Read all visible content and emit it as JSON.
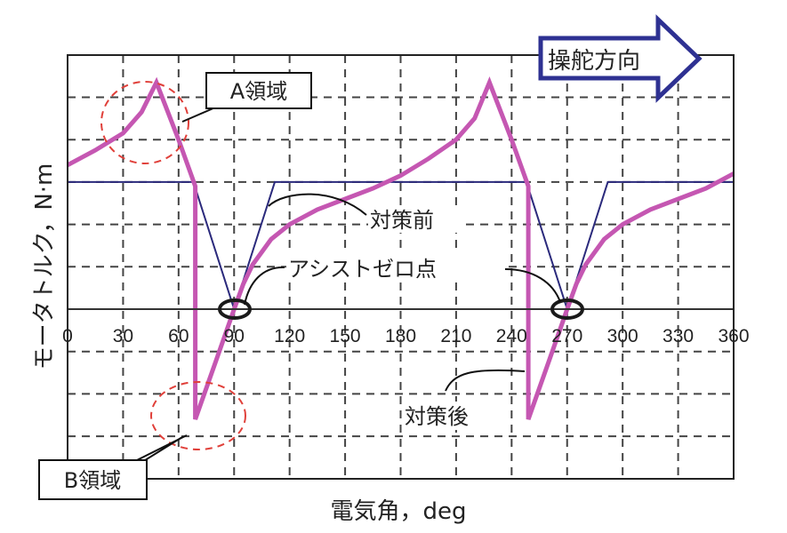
{
  "chart_data": {
    "type": "line",
    "title": "",
    "xlabel": "電気角，deg",
    "ylabel": "モータトルク，N·m",
    "xlim": [
      0,
      360
    ],
    "ylim": [
      -4.2,
      6
    ],
    "x_ticks": [
      0,
      30,
      60,
      90,
      120,
      150,
      180,
      210,
      240,
      270,
      300,
      330,
      360
    ],
    "x_tick_labels": [
      "0",
      "30",
      "60",
      "90",
      "120",
      "150",
      "180",
      "210",
      "240",
      "270",
      "300",
      "330",
      "360"
    ],
    "y_tick_labels": [],
    "y_gridlines_units": [
      6,
      5,
      4,
      3,
      2,
      1,
      0,
      -1,
      -2,
      -3
    ],
    "grid": true,
    "grid_style": "dashed",
    "series": [
      {
        "name": "対策前",
        "color": "#2b2a7c",
        "x": [
          0,
          68,
          90,
          112,
          248,
          270,
          292,
          360
        ],
        "y": [
          3,
          3,
          0,
          3,
          3,
          0,
          3,
          3
        ]
      },
      {
        "name": "対策後",
        "color": "#c557b2",
        "x": [
          0,
          15,
          30,
          40,
          48,
          60,
          69,
          69,
          80,
          90,
          95,
          100,
          110,
          120,
          135,
          150,
          165,
          180,
          195,
          210,
          220,
          228,
          240,
          249,
          249,
          260,
          270,
          275,
          280,
          290,
          300,
          315,
          330,
          345,
          360
        ],
        "y": [
          3.4,
          3.75,
          4.15,
          4.65,
          5.35,
          4.0,
          2.9,
          -2.6,
          -1.25,
          0,
          0.6,
          1.05,
          1.65,
          2.0,
          2.35,
          2.6,
          2.85,
          3.15,
          3.55,
          4.0,
          4.5,
          5.35,
          4.0,
          2.9,
          -2.6,
          -1.25,
          0,
          0.6,
          1.05,
          1.65,
          2.0,
          2.35,
          2.6,
          2.85,
          3.2
        ]
      }
    ],
    "annotations": [
      {
        "text": "A領域",
        "target": "peak near 48°",
        "style": "red dashed circle"
      },
      {
        "text": "B領域",
        "target": "trough near 69°",
        "style": "red dashed circle"
      },
      {
        "text": "対策前",
        "target": "blue line"
      },
      {
        "text": "アシストゼロ点",
        "target": "zero crossings at 90° and 270°",
        "style": "black ellipses"
      },
      {
        "text": "対策後",
        "target": "magenta line"
      },
      {
        "text": "操舵方向",
        "style": "right arrow"
      }
    ],
    "legend": "none (inline callouts)"
  },
  "labels": {
    "xlabel": "電気角，deg",
    "ylabel": "モータトルク，N·m",
    "region_a": "A領域",
    "region_b": "B領域",
    "before": "対策前",
    "after": "対策後",
    "assist_zero": "アシストゼロ点",
    "steering_direction": "操舵方向"
  },
  "colors": {
    "before": "#2b2a7c",
    "after": "#c557b2",
    "region_circle": "#e0403a",
    "arrow": "#2e3192",
    "grid": "#444444"
  }
}
